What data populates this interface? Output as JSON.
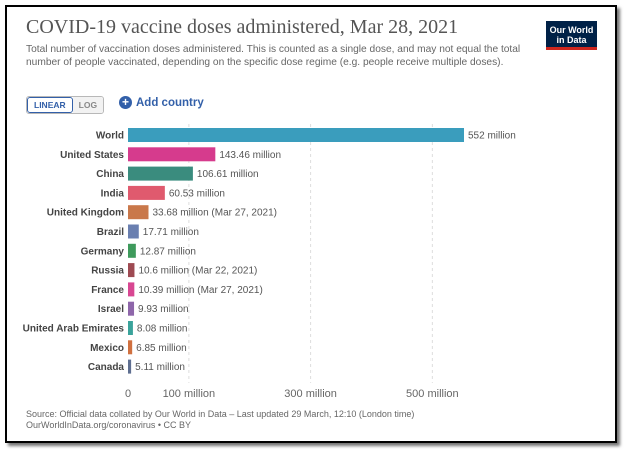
{
  "header": {
    "title": "COVID-19 vaccine doses administered, Mar 28, 2021",
    "subtitle": "Total number of vaccination doses administered. This is counted as a single dose, and may not equal the total number of people vaccinated, depending on the specific dose regime (e.g. people receive multiple doses).",
    "logo_line1": "Our World",
    "logo_line2": "in Data"
  },
  "controls": {
    "linear_label": "LINEAR",
    "log_label": "LOG",
    "add_country_label": "Add country"
  },
  "colors": {
    "accent": "#3360a9",
    "logo_bg": "#002147",
    "logo_bar": "#ce261e"
  },
  "chart_data": {
    "type": "bar",
    "orientation": "horizontal",
    "categories": [
      "World",
      "United States",
      "China",
      "India",
      "United Kingdom",
      "Brazil",
      "Germany",
      "Russia",
      "France",
      "Israel",
      "United Arab Emirates",
      "Mexico",
      "Canada"
    ],
    "values": [
      552,
      143.46,
      106.61,
      60.53,
      33.68,
      17.71,
      12.87,
      10.6,
      10.39,
      9.93,
      8.08,
      6.85,
      5.11
    ],
    "value_labels": [
      "552 million",
      "143.46 million",
      "106.61 million",
      "60.53 million",
      "33.68 million (Mar 27, 2021)",
      "17.71 million",
      "12.87 million",
      "10.6 million (Mar 22, 2021)",
      "10.39 million (Mar 27, 2021)",
      "9.93 million",
      "8.08 million",
      "6.85 million",
      "5.11 million"
    ],
    "colors": [
      "#3a9dbd",
      "#d63b8d",
      "#3a8c7e",
      "#e05a6e",
      "#c9784a",
      "#6a7fb0",
      "#3e9a5c",
      "#9e4a52",
      "#d84792",
      "#8e66aa",
      "#3aa39b",
      "#d0703f",
      "#5e6e90"
    ],
    "xlim": [
      0,
      552
    ],
    "xticks": [
      0,
      100,
      300,
      500
    ],
    "xtick_labels": [
      "0",
      "100 million",
      "300 million",
      "500 million"
    ],
    "grid": true
  },
  "footer": {
    "source_line1": "Source: Official data collated by Our World in Data – Last updated 29 March, 12:10 (London time)",
    "source_line2": "OurWorldInData.org/coronavirus • CC BY"
  }
}
